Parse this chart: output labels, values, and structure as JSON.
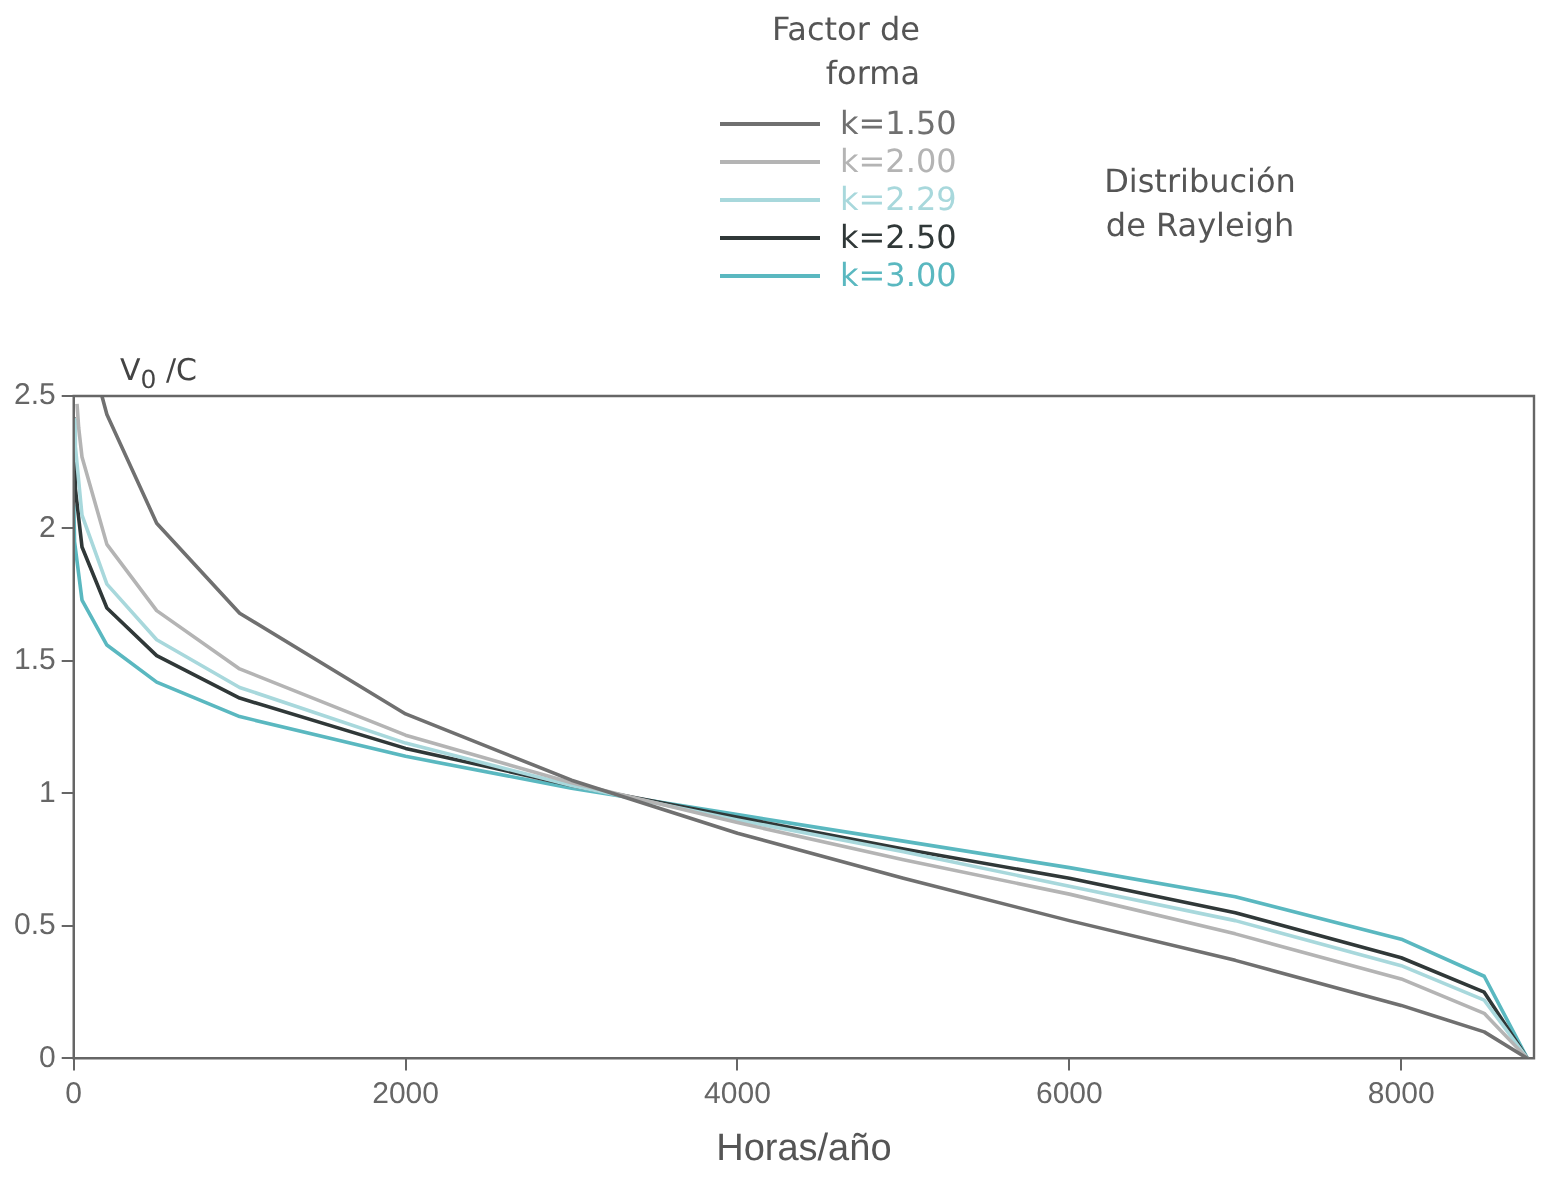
{
  "chart_data": {
    "type": "line",
    "xlabel": "Horas/año",
    "ylabel": "V$_{0}$ /C",
    "legend_title": "Factor de forma",
    "legend": "top right",
    "marker": "none",
    "line_style": "solid",
    "grid": false,
    "xlim": [
      0,
      8800
    ],
    "xticks": [
      0,
      2000,
      4000,
      6000,
      8000
    ],
    "ylim": [
      0,
      2.5
    ],
    "yticks": [
      0,
      0.5,
      1,
      1.5,
      2,
      2.5
    ],
    "annotations": [
      "Distribución de Rayleigh"
    ],
    "series": [
      {
        "name": "k=1.50",
        "color": "#707070",
        "x": [
          170,
          200,
          500,
          1000,
          2000,
          3000,
          4000,
          5000,
          6000,
          7000,
          8000,
          8500,
          8760
        ],
        "values": [
          2.5,
          2.43,
          2.02,
          1.68,
          1.3,
          1.05,
          0.85,
          0.68,
          0.52,
          0.37,
          0.2,
          0.1,
          0
        ]
      },
      {
        "name": "k=2.00",
        "color": "#b4b4b4",
        "x": [
          20,
          30,
          50,
          200,
          500,
          1000,
          2000,
          3000,
          4000,
          5000,
          6000,
          7000,
          8000,
          8500,
          8760
        ],
        "values": [
          2.47,
          2.38,
          2.27,
          1.94,
          1.69,
          1.47,
          1.22,
          1.04,
          0.89,
          0.75,
          0.62,
          0.47,
          0.3,
          0.17,
          0
        ]
      },
      {
        "name": "k=2.29",
        "color": "#a8d8dc",
        "x": [
          5,
          10,
          50,
          200,
          500,
          1000,
          2000,
          3000,
          4000,
          5000,
          6000,
          7000,
          8000,
          8500,
          8760
        ],
        "values": [
          2.41,
          2.31,
          2.05,
          1.79,
          1.58,
          1.4,
          1.19,
          1.03,
          0.9,
          0.78,
          0.65,
          0.52,
          0.35,
          0.22,
          0
        ]
      },
      {
        "name": "k=2.50",
        "color": "#303838",
        "x": [
          1,
          5,
          10,
          50,
          200,
          500,
          1000,
          2000,
          3000,
          4000,
          5000,
          6000,
          7000,
          8000,
          8500,
          8760
        ],
        "values": [
          2.42,
          2.23,
          2.15,
          1.93,
          1.7,
          1.52,
          1.36,
          1.17,
          1.03,
          0.91,
          0.79,
          0.68,
          0.55,
          0.38,
          0.25,
          0
        ]
      },
      {
        "name": "k=3.00",
        "color": "#5ab8c0",
        "x": [
          1,
          5,
          50,
          200,
          500,
          1000,
          2000,
          3000,
          4000,
          5000,
          6000,
          7000,
          8000,
          8500,
          8760
        ],
        "values": [
          2.09,
          1.95,
          1.73,
          1.56,
          1.42,
          1.29,
          1.14,
          1.02,
          0.92,
          0.82,
          0.72,
          0.61,
          0.45,
          0.31,
          0
        ]
      }
    ]
  }
}
